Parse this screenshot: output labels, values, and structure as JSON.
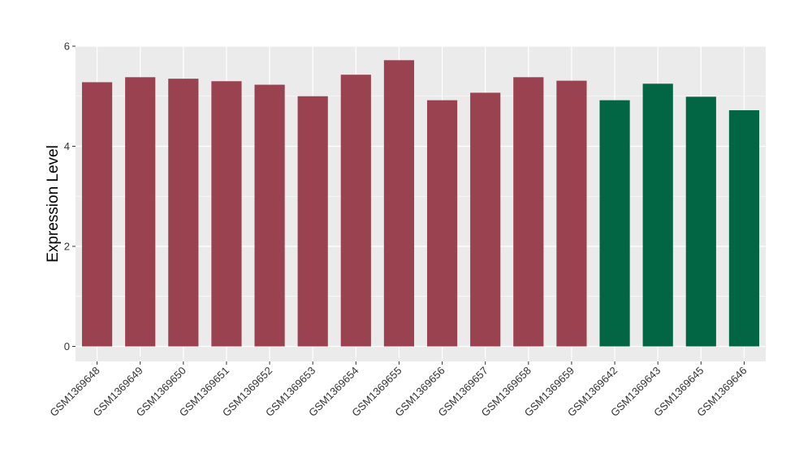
{
  "chart_data": {
    "type": "bar",
    "title": "",
    "xlabel": "",
    "ylabel": "Expression Level",
    "ylim": [
      -0.3,
      6.0
    ],
    "y_ticks": [
      0,
      2,
      4,
      6
    ],
    "grid": true,
    "legend": "none",
    "categories": [
      "GSM1369648",
      "GSM1369649",
      "GSM1369650",
      "GSM1369651",
      "GSM1369652",
      "GSM1369653",
      "GSM1369654",
      "GSM1369655",
      "GSM1369656",
      "GSM1369657",
      "GSM1369658",
      "GSM1369659",
      "GSM1369642",
      "GSM1369643",
      "GSM1369645",
      "GSM1369646"
    ],
    "values": [
      5.28,
      5.38,
      5.35,
      5.3,
      5.23,
      5.0,
      5.43,
      5.72,
      4.92,
      5.07,
      5.38,
      5.31,
      4.92,
      5.25,
      4.99,
      4.72
    ],
    "bar_groups": [
      1,
      1,
      1,
      1,
      1,
      1,
      1,
      1,
      1,
      1,
      1,
      1,
      2,
      2,
      2,
      2
    ],
    "group_colors": {
      "1": "#9b4250",
      "2": "#026644"
    },
    "panel_background": "#ebebeb",
    "gridline_color": "#ffffff"
  }
}
